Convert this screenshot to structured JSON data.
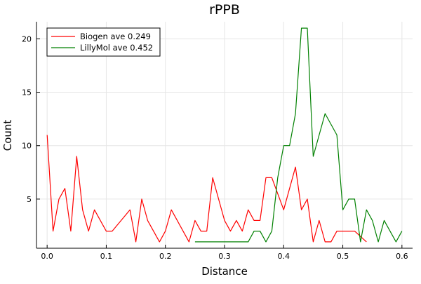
{
  "chart_data": {
    "type": "line",
    "title": "rPPB",
    "xlabel": "Distance",
    "ylabel": "Count",
    "xlim": [
      -0.018,
      0.618
    ],
    "ylim": [
      0.4,
      21.6
    ],
    "xticks": [
      0,
      0.1,
      0.2,
      0.3,
      0.4,
      0.5,
      0.6
    ],
    "xtick_labels": [
      "0.0",
      "0.1",
      "0.2",
      "0.3",
      "0.4",
      "0.5",
      "0.6"
    ],
    "yticks": [
      5,
      10,
      15,
      20
    ],
    "ytick_labels": [
      "5",
      "10",
      "15",
      "20"
    ],
    "grid": true,
    "legend_position": "top-left",
    "series": [
      {
        "name": "Biogen ave 0.249",
        "color": "#ff0000",
        "x": [
          0.0,
          0.01,
          0.02,
          0.03,
          0.04,
          0.05,
          0.06,
          0.07,
          0.08,
          0.1,
          0.11,
          0.14,
          0.15,
          0.16,
          0.17,
          0.19,
          0.2,
          0.21,
          0.24,
          0.25,
          0.26,
          0.27,
          0.28,
          0.3,
          0.31,
          0.32,
          0.33,
          0.34,
          0.35,
          0.36,
          0.37,
          0.38,
          0.4,
          0.42,
          0.43,
          0.44,
          0.45,
          0.46,
          0.47,
          0.48,
          0.49,
          0.5,
          0.51,
          0.52,
          0.53,
          0.54
        ],
        "y": [
          11,
          2,
          5,
          6,
          2,
          9,
          4,
          2,
          4,
          2,
          2,
          4,
          1,
          5,
          3,
          1,
          2,
          4,
          1,
          3,
          2,
          2,
          7,
          3,
          2,
          3,
          2,
          4,
          3,
          3,
          7,
          7,
          4,
          8,
          4,
          5,
          1,
          3,
          1,
          1,
          2,
          2,
          2,
          2,
          1.5,
          1
        ]
      },
      {
        "name": "LillyMol ave 0.452",
        "color": "#008000",
        "x": [
          0.25,
          0.34,
          0.35,
          0.36,
          0.37,
          0.38,
          0.39,
          0.4,
          0.41,
          0.42,
          0.43,
          0.44,
          0.45,
          0.47,
          0.49,
          0.5,
          0.51,
          0.52,
          0.53,
          0.54,
          0.55,
          0.56,
          0.57,
          0.59,
          0.6
        ],
        "y": [
          1,
          1,
          2,
          2,
          1,
          2,
          7,
          10,
          10,
          13,
          21,
          21,
          9,
          13,
          11,
          4,
          5,
          5,
          1,
          4,
          3,
          1,
          3,
          1,
          2
        ]
      }
    ]
  }
}
